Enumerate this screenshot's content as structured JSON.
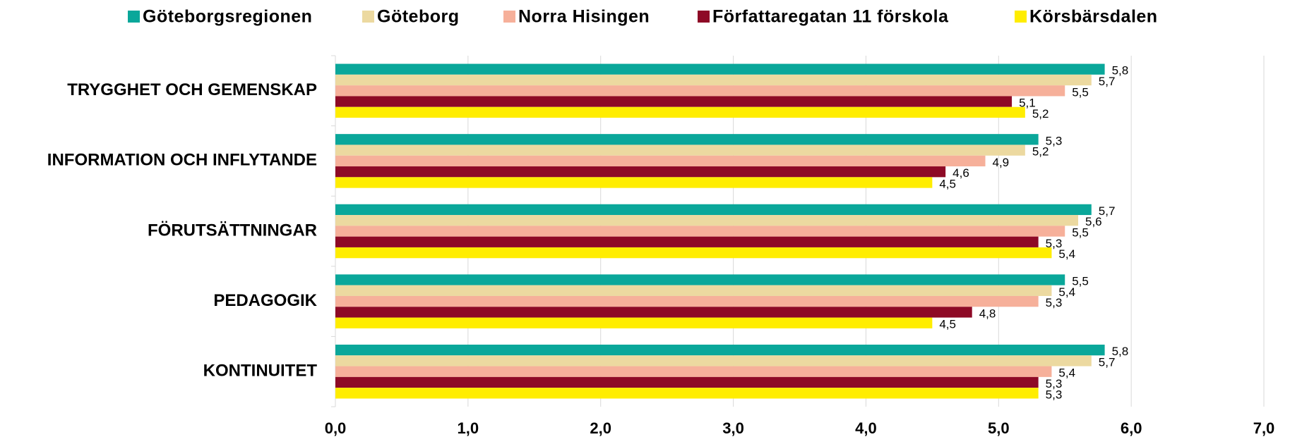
{
  "chart_data": {
    "type": "hbar",
    "categories": [
      "TRYGGHET OCH GEMENSKAP",
      "INFORMATION OCH INFLYTANDE",
      "FÖRUTSÄTTNINGAR",
      "PEDAGOGIK",
      "KONTINUITET"
    ],
    "series": [
      {
        "name": "Göteborgsregionen",
        "color": "#0aa79a",
        "values": [
          5.8,
          5.3,
          5.7,
          5.5,
          5.8
        ],
        "value_labels": [
          "5,8",
          "5,3",
          "5,7",
          "5,5",
          "5,8"
        ]
      },
      {
        "name": "Göteborg",
        "color": "#ecd9a0",
        "values": [
          5.7,
          5.2,
          5.6,
          5.4,
          5.7
        ],
        "value_labels": [
          "5,7",
          "5,2",
          "5,6",
          "5,4",
          "5,7"
        ]
      },
      {
        "name": "Norra Hisingen",
        "color": "#f6b09a",
        "values": [
          5.5,
          4.9,
          5.5,
          5.3,
          5.4
        ],
        "value_labels": [
          "5,5",
          "4,9",
          "5,5",
          "5,3",
          "5,4"
        ]
      },
      {
        "name": "Författaregatan 11 förskola",
        "color": "#8e0a26",
        "values": [
          5.1,
          4.6,
          5.3,
          4.8,
          5.3
        ],
        "value_labels": [
          "5,1",
          "4,6",
          "5,3",
          "4,8",
          "5,3"
        ]
      },
      {
        "name": "Körsbärsdalen",
        "color": "#ffed00",
        "values": [
          5.2,
          4.5,
          5.4,
          4.5,
          5.3
        ],
        "value_labels": [
          "5,2",
          "4,5",
          "5,4",
          "4,5",
          "5,3"
        ]
      }
    ],
    "xlim": [
      0,
      7
    ],
    "xticks": [
      {
        "value": 0,
        "label": "0,0"
      },
      {
        "value": 1,
        "label": "1,0"
      },
      {
        "value": 2,
        "label": "2,0"
      },
      {
        "value": 3,
        "label": "3,0"
      },
      {
        "value": 4,
        "label": "4,0"
      },
      {
        "value": 5,
        "label": "5,0"
      },
      {
        "value": 6,
        "label": "6,0"
      },
      {
        "value": 7,
        "label": "7,0"
      }
    ],
    "grid": true,
    "legend": "top"
  }
}
